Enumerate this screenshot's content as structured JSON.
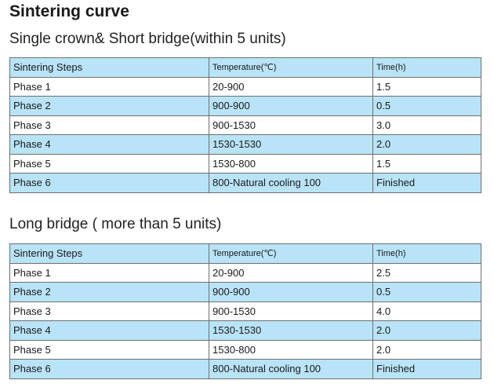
{
  "title": "Sintering curve",
  "sections": [
    {
      "heading": "Single crown& Short bridge(within 5 units)",
      "headers": [
        "Sintering Steps",
        "Temperature(℃)",
        "Time(h)"
      ],
      "rows": [
        [
          "Phase  1",
          "20-900",
          "1.5"
        ],
        [
          "Phase  2",
          "900-900",
          "0.5"
        ],
        [
          "Phase  3",
          "900-1530",
          "3.0"
        ],
        [
          "Phase  4",
          "1530-1530",
          "2.0"
        ],
        [
          "Phase  5",
          "1530-800",
          "1.5"
        ],
        [
          "Phase  6",
          "800-Natural cooling 100",
          "Finished"
        ]
      ]
    },
    {
      "heading": "Long bridge ( more than 5 units)",
      "headers": [
        "Sintering Steps",
        "Temperature(℃)",
        "Time(h)"
      ],
      "rows": [
        [
          "Phase  1",
          "20-900",
          "2.5"
        ],
        [
          "Phase  2",
          "900-900",
          "0.5"
        ],
        [
          "Phase  3",
          "900-1530",
          "4.0"
        ],
        [
          "Phase  4",
          "1530-1530",
          "2.0"
        ],
        [
          "Phase  5",
          "1530-800",
          "2.0"
        ],
        [
          "Phase  6",
          "800-Natural cooling 100",
          "Finished"
        ]
      ]
    }
  ]
}
